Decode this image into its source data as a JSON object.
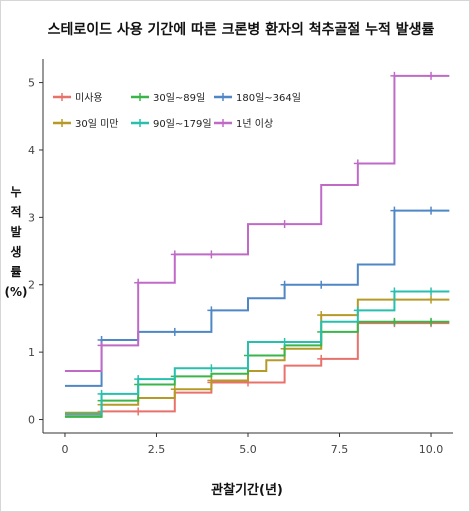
{
  "chart_data": {
    "type": "line",
    "step": true,
    "title": "스테로이드 사용 기간에 따른 크론병 환자의 척추골절 누적 발생률",
    "xlabel": "관찰기간(년)",
    "ylabel": "누적발생률(%)",
    "ylabel_lines": [
      "누",
      "적",
      "발",
      "생",
      "률",
      "(%)"
    ],
    "xlim": [
      -0.6,
      10.6
    ],
    "ylim": [
      -0.2,
      5.35
    ],
    "xticks": [
      0,
      2.5,
      5,
      7.5,
      10
    ],
    "xtick_labels": [
      "0",
      "2.5",
      "5.0",
      "7.5",
      "10.0"
    ],
    "yticks": [
      0,
      1,
      2,
      3,
      4,
      5
    ],
    "ytick_labels": [
      "0",
      "1",
      "2",
      "3",
      "4",
      "5"
    ],
    "grid": false,
    "legend_position": "top-left",
    "series": [
      {
        "name": "미사용",
        "color": "#e8726b",
        "steps": [
          [
            0,
            0.05
          ],
          [
            1,
            0.12
          ],
          [
            3,
            0.4
          ],
          [
            4,
            0.55
          ],
          [
            6,
            0.8
          ],
          [
            7,
            0.9
          ],
          [
            8,
            1.43
          ],
          [
            10.5,
            1.43
          ]
        ],
        "censor_x": [
          1,
          2,
          4,
          5,
          7,
          9,
          10
        ]
      },
      {
        "name": "30일 미만",
        "color": "#b59a28",
        "steps": [
          [
            0,
            0.1
          ],
          [
            1,
            0.22
          ],
          [
            2,
            0.32
          ],
          [
            3,
            0.45
          ],
          [
            4,
            0.58
          ],
          [
            5,
            0.72
          ],
          [
            5.5,
            0.88
          ],
          [
            6,
            1.05
          ],
          [
            7,
            1.55
          ],
          [
            8,
            1.78
          ],
          [
            10.5,
            1.78
          ]
        ],
        "censor_x": [
          1,
          3,
          4,
          6,
          7,
          9,
          10
        ]
      },
      {
        "name": "30일~89일",
        "color": "#3ab54a",
        "steps": [
          [
            0,
            0.04
          ],
          [
            1,
            0.28
          ],
          [
            2,
            0.52
          ],
          [
            3,
            0.64
          ],
          [
            4,
            0.68
          ],
          [
            5,
            0.95
          ],
          [
            6,
            1.1
          ],
          [
            7,
            1.3
          ],
          [
            8,
            1.45
          ],
          [
            10.5,
            1.45
          ]
        ],
        "censor_x": [
          1,
          2,
          3,
          5,
          7,
          9,
          10
        ]
      },
      {
        "name": "90일~179일",
        "color": "#27bfae",
        "steps": [
          [
            0,
            0.08
          ],
          [
            1,
            0.38
          ],
          [
            2,
            0.6
          ],
          [
            3,
            0.76
          ],
          [
            5,
            1.15
          ],
          [
            7,
            1.45
          ],
          [
            8,
            1.62
          ],
          [
            9,
            1.9
          ],
          [
            10.5,
            1.9
          ]
        ],
        "censor_x": [
          1,
          2,
          4,
          6,
          8,
          9,
          10
        ]
      },
      {
        "name": "180일~364일",
        "color": "#4f86c6",
        "steps": [
          [
            0,
            0.5
          ],
          [
            1,
            1.18
          ],
          [
            2,
            1.3
          ],
          [
            4,
            1.62
          ],
          [
            5,
            1.8
          ],
          [
            6,
            2.0
          ],
          [
            8,
            2.3
          ],
          [
            9,
            3.1
          ],
          [
            10.5,
            3.1
          ]
        ],
        "censor_x": [
          1,
          3,
          4,
          6,
          7,
          9,
          10
        ]
      },
      {
        "name": "1년 이상",
        "color": "#c06ac8",
        "steps": [
          [
            0,
            0.72
          ],
          [
            1,
            1.1
          ],
          [
            2,
            2.03
          ],
          [
            3,
            2.45
          ],
          [
            5,
            2.9
          ],
          [
            7,
            3.48
          ],
          [
            8,
            3.8
          ],
          [
            9,
            5.1
          ],
          [
            10.5,
            5.1
          ]
        ],
        "censor_x": [
          1,
          2,
          3,
          4,
          6,
          8,
          9,
          10
        ]
      }
    ]
  }
}
